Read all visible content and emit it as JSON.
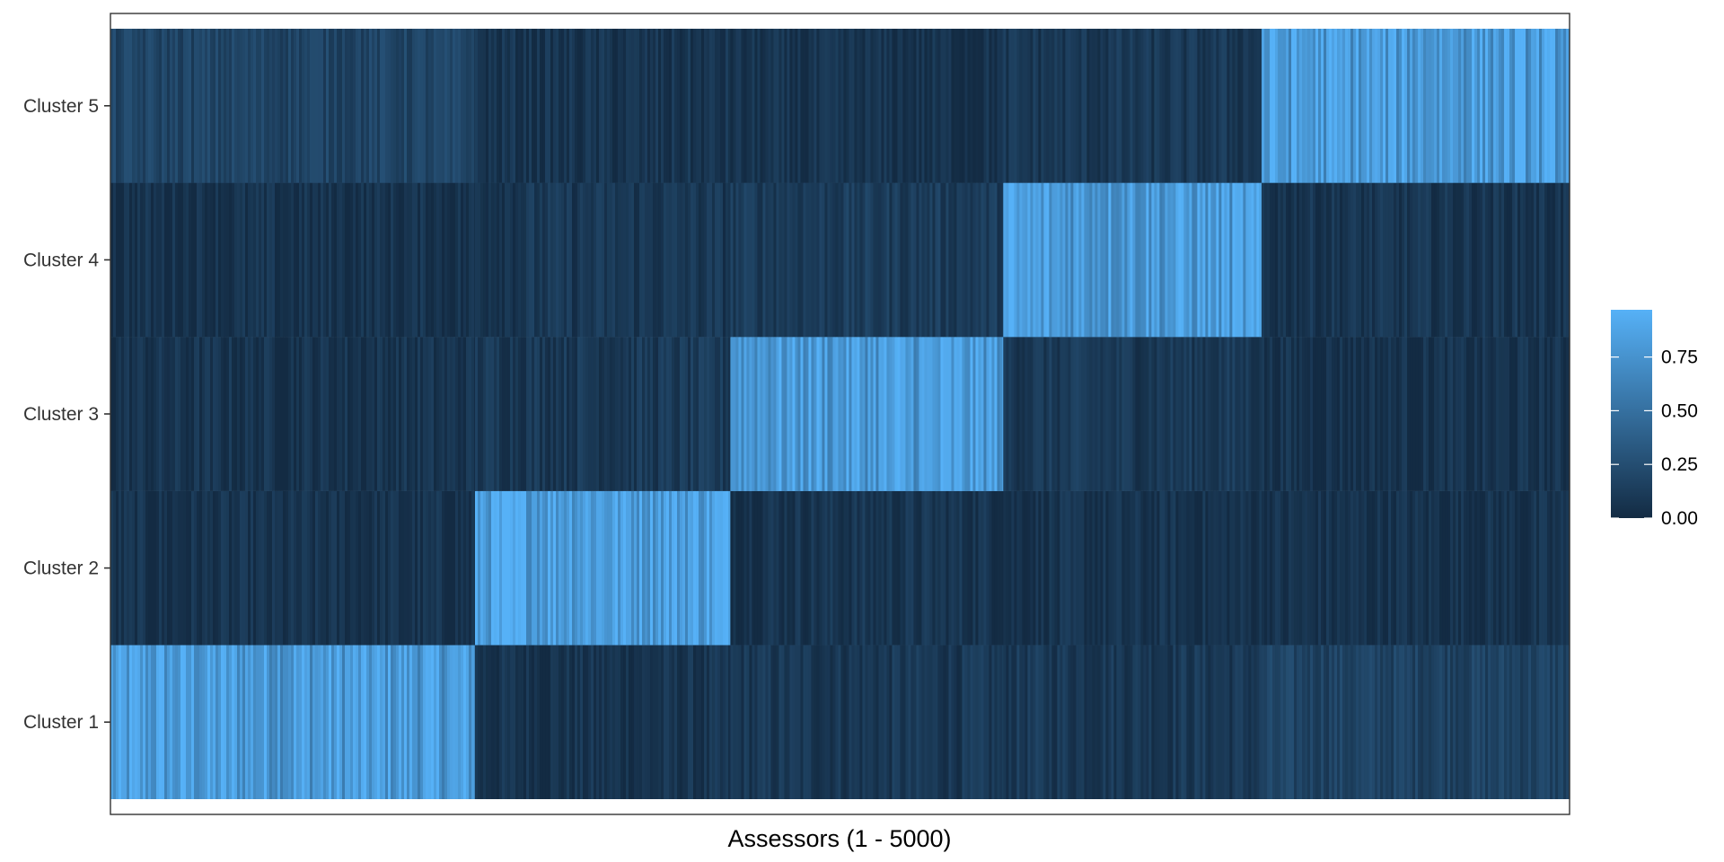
{
  "chart_data": {
    "type": "heatmap",
    "title": "",
    "xlabel": "Assessors (1 - 5000)",
    "ylabel": "",
    "x_range": [
      1,
      5000
    ],
    "rows": [
      "Cluster 1",
      "Cluster 2",
      "Cluster 3",
      "Cluster 4",
      "Cluster 5"
    ],
    "column_segments": [
      {
        "x_start": 1,
        "x_end": 1250
      },
      {
        "x_start": 1251,
        "x_end": 2125
      },
      {
        "x_start": 2126,
        "x_end": 3060
      },
      {
        "x_start": 3061,
        "x_end": 3945
      },
      {
        "x_start": 3946,
        "x_end": 5000
      }
    ],
    "mean_values": [
      [
        0.8,
        0.06,
        0.09,
        0.1,
        0.17
      ],
      [
        0.05,
        0.85,
        0.07,
        0.05,
        0.05
      ],
      [
        0.06,
        0.1,
        0.8,
        0.1,
        0.05
      ],
      [
        0.05,
        0.09,
        0.12,
        0.8,
        0.07
      ],
      [
        0.18,
        0.06,
        0.05,
        0.09,
        0.8
      ]
    ],
    "color_scale": {
      "low": "#132B43",
      "high": "#56B1F7",
      "limits": [
        0,
        0.97
      ]
    },
    "legend": {
      "position": "right",
      "ticks": [
        "0.00",
        "0.25",
        "0.50",
        "0.75"
      ],
      "tick_values": [
        0,
        0.25,
        0.5,
        0.75
      ]
    },
    "grid": false
  }
}
